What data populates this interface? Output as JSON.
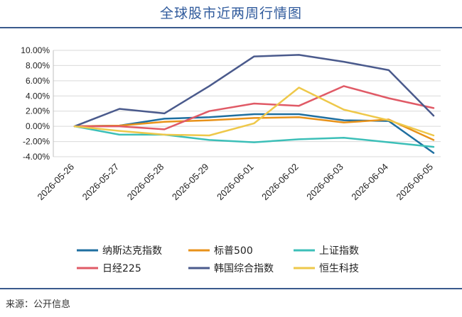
{
  "title": "全球股市近两周行情图",
  "source": "来源：公开信息",
  "chart_data": {
    "type": "line",
    "title": "全球股市近两周行情图",
    "x": [
      "2026-05-26",
      "2026-05-27",
      "2026-05-28",
      "2026-05-29",
      "2026-06-01",
      "2026-06-02",
      "2026-06-03",
      "2026-06-04",
      "2026-06-05"
    ],
    "ylim": [
      -4,
      10
    ],
    "yticks": [
      -4,
      -2,
      0,
      2,
      4,
      6,
      8,
      10
    ],
    "ytick_labels": [
      "-4.00%",
      "-2.00%",
      "0.00%",
      "2.00%",
      "4.00%",
      "6.00%",
      "8.00%",
      "10.00%"
    ],
    "grid": true,
    "legend_position": "bottom",
    "series": [
      {
        "name": "纳斯达克指数",
        "color": "#1f6fa0",
        "values": [
          0,
          0.1,
          1.0,
          1.2,
          1.6,
          1.6,
          0.8,
          0.7,
          -3.5
        ]
      },
      {
        "name": "标普500",
        "color": "#e8921a",
        "values": [
          0,
          0.1,
          0.6,
          0.8,
          1.1,
          1.2,
          0.5,
          0.9,
          -1.8
        ]
      },
      {
        "name": "上证指数",
        "color": "#3cbfb8",
        "values": [
          0,
          -1.1,
          -1.1,
          -1.8,
          -2.1,
          -1.7,
          -1.5,
          -2.1,
          -2.7
        ]
      },
      {
        "name": "日经225",
        "color": "#e05a66",
        "values": [
          0,
          0.0,
          -0.4,
          2.0,
          3.0,
          2.7,
          5.3,
          3.7,
          2.4
        ]
      },
      {
        "name": "韩国综合指数",
        "color": "#4a5a8c",
        "values": [
          0,
          2.3,
          1.7,
          5.3,
          9.2,
          9.4,
          8.5,
          7.4,
          1.4
        ]
      },
      {
        "name": "恒生科技",
        "color": "#eec84a",
        "values": [
          0,
          -0.6,
          -1.1,
          -1.2,
          0.4,
          5.1,
          2.2,
          0.8,
          -1.2
        ]
      }
    ]
  }
}
